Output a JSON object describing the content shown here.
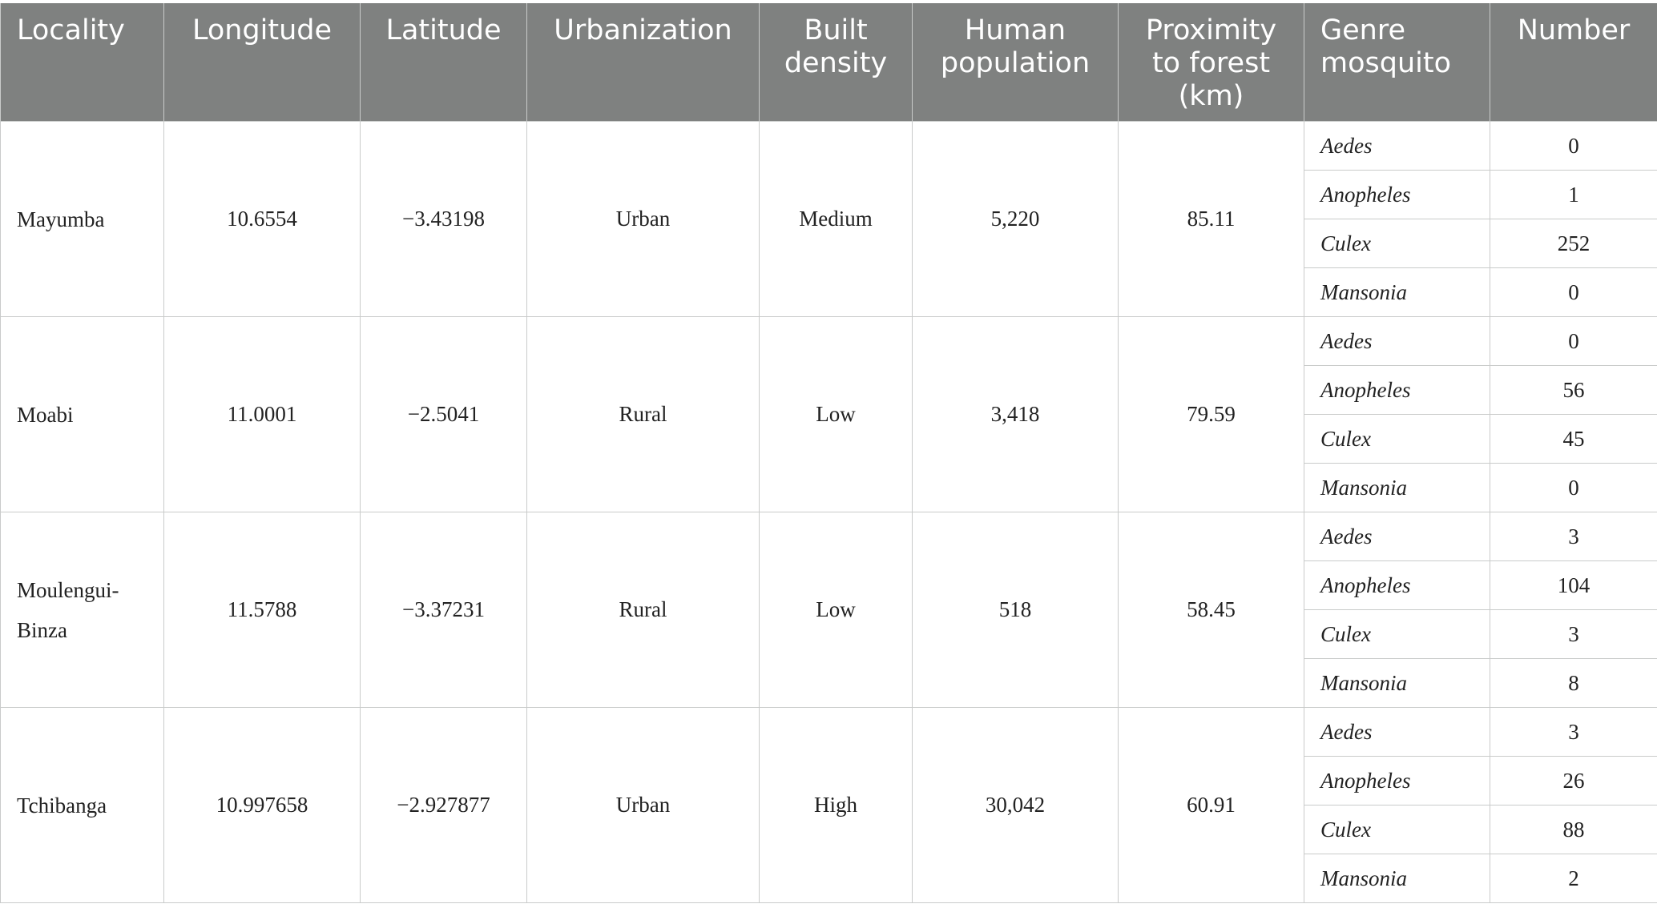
{
  "table": {
    "headers": {
      "locality": "Locality",
      "longitude": "Longitude",
      "latitude": "Latitude",
      "urbanization": "Urbanization",
      "built_density": "Built density",
      "human_population": "Human population",
      "proximity_to_forest": "Proximity to forest (km)",
      "genre_mosquito": "Genre mosquito",
      "number": "Number"
    },
    "rows": [
      {
        "locality": "Mayumba",
        "longitude": "10.6554",
        "latitude": "−3.43198",
        "urbanization": "Urban",
        "built_density": "Medium",
        "human_population": "5,220",
        "proximity_to_forest": "85.11",
        "genera": [
          {
            "genus": "Aedes",
            "number": "0"
          },
          {
            "genus": "Anopheles",
            "number": "1"
          },
          {
            "genus": "Culex",
            "number": "252"
          },
          {
            "genus": "Mansonia",
            "number": "0"
          }
        ]
      },
      {
        "locality": "Moabi",
        "longitude": "11.0001",
        "latitude": "−2.5041",
        "urbanization": "Rural",
        "built_density": "Low",
        "human_population": "3,418",
        "proximity_to_forest": "79.59",
        "genera": [
          {
            "genus": "Aedes",
            "number": "0"
          },
          {
            "genus": "Anopheles",
            "number": "56"
          },
          {
            "genus": "Culex",
            "number": "45"
          },
          {
            "genus": "Mansonia",
            "number": "0"
          }
        ]
      },
      {
        "locality": "Moulengui-Binza",
        "longitude": "11.5788",
        "latitude": "−3.37231",
        "urbanization": "Rural",
        "built_density": "Low",
        "human_population": "518",
        "proximity_to_forest": "58.45",
        "genera": [
          {
            "genus": "Aedes",
            "number": "3"
          },
          {
            "genus": "Anopheles",
            "number": "104"
          },
          {
            "genus": "Culex",
            "number": "3"
          },
          {
            "genus": "Mansonia",
            "number": "8"
          }
        ]
      },
      {
        "locality": "Tchibanga",
        "longitude": "10.997658",
        "latitude": "−2.927877",
        "urbanization": "Urban",
        "built_density": "High",
        "human_population": "30,042",
        "proximity_to_forest": "60.91",
        "genera": [
          {
            "genus": "Aedes",
            "number": "3"
          },
          {
            "genus": "Anopheles",
            "number": "26"
          },
          {
            "genus": "Culex",
            "number": "88"
          },
          {
            "genus": "Mansonia",
            "number": "2"
          }
        ]
      }
    ]
  }
}
